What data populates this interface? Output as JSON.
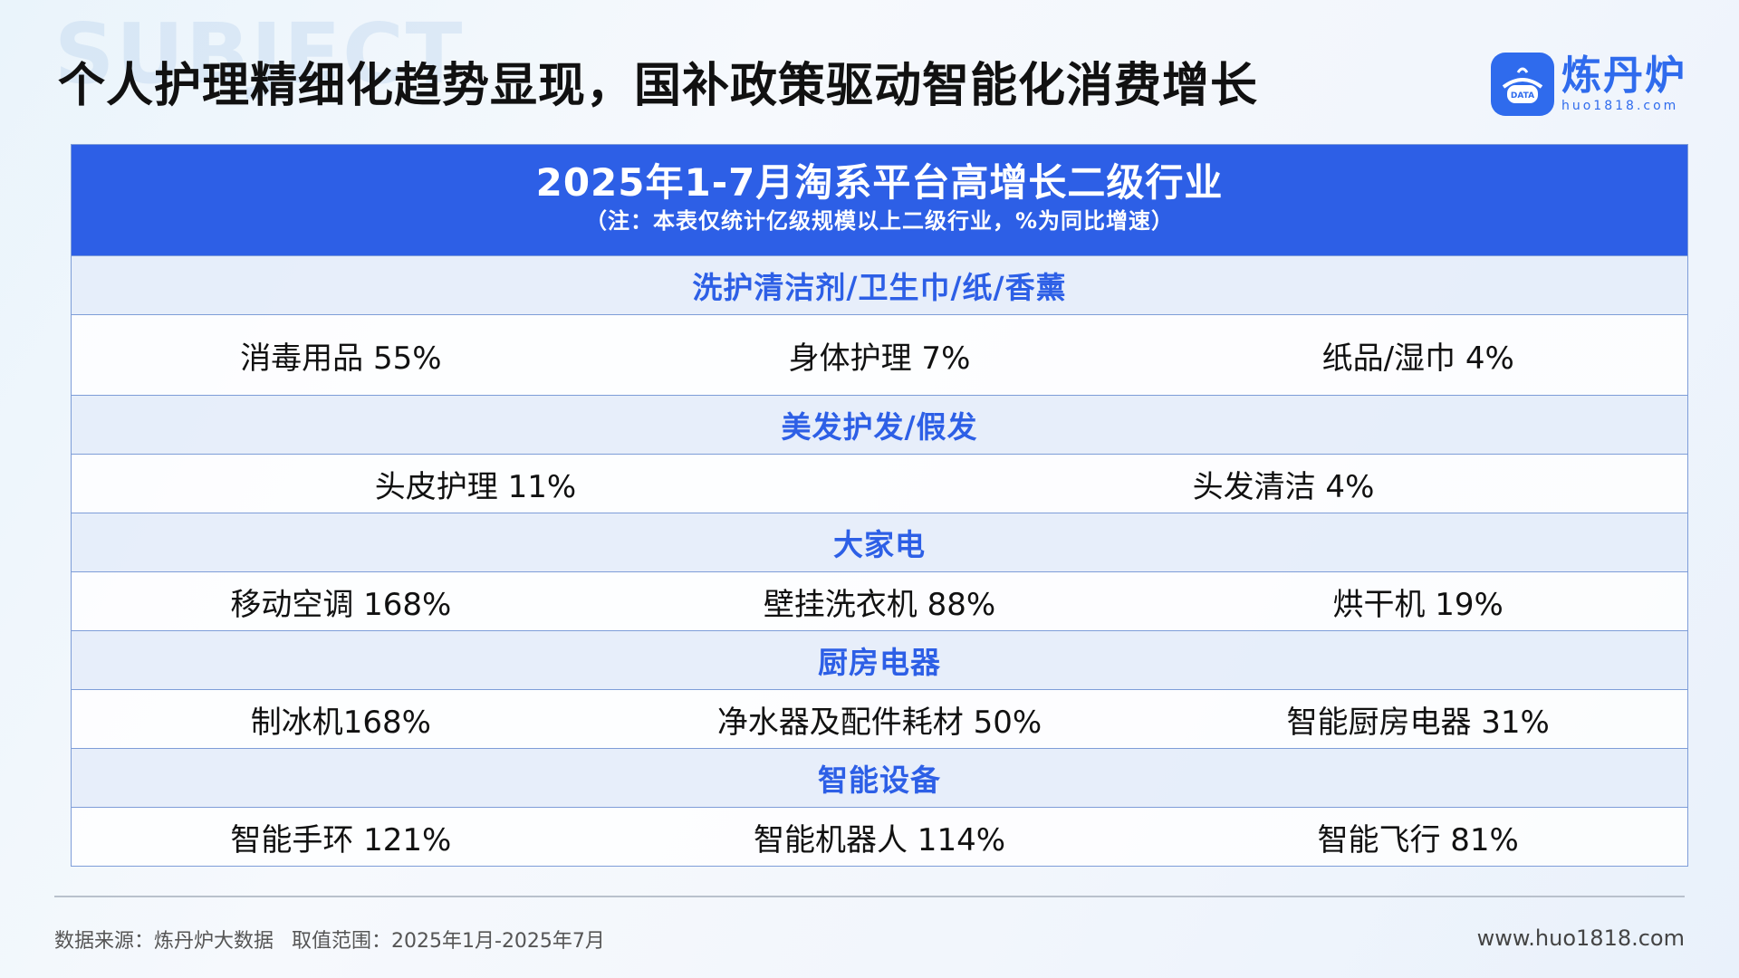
{
  "background_word": "SUBJECT",
  "header": {
    "title": "个人护理精细化趋势显现，国补政策驱动智能化消费增长",
    "logo": {
      "name": "炼丹炉",
      "domain": "huo1818.com",
      "badge": "DATA"
    }
  },
  "table": {
    "title": "2025年1-7月淘系平台高增长二级行业",
    "note": "（注：本表仅统计亿级规模以上二级行业，%为同比增速）",
    "sections": [
      {
        "category": "洗护清洁剂/卫生巾/纸/香薰",
        "items": [
          "消毒用品 55%",
          "身体护理 7%",
          "纸品/湿巾 4%"
        ]
      },
      {
        "category": "美发护发/假发",
        "items": [
          "头皮护理 11%",
          "头发清洁 4%"
        ]
      },
      {
        "category": "大家电",
        "items": [
          "移动空调 168%",
          "壁挂洗衣机 88%",
          "烘干机 19%"
        ]
      },
      {
        "category": "厨房电器",
        "items": [
          "制冰机168%",
          "净水器及配件耗材 50%",
          "智能厨房电器 31%"
        ]
      },
      {
        "category": "智能设备",
        "items": [
          "智能手环 121%",
          "智能机器人 114%",
          "智能飞行 81%"
        ]
      }
    ]
  },
  "footer": {
    "source": "数据来源：炼丹炉大数据",
    "range": "取值范围：2025年1月-2025年7月",
    "website": "www.huo1818.com"
  },
  "colors": {
    "accent": "#2d5fe6",
    "category_bg": "#e0eaf8",
    "border": "#7e9dd8"
  }
}
